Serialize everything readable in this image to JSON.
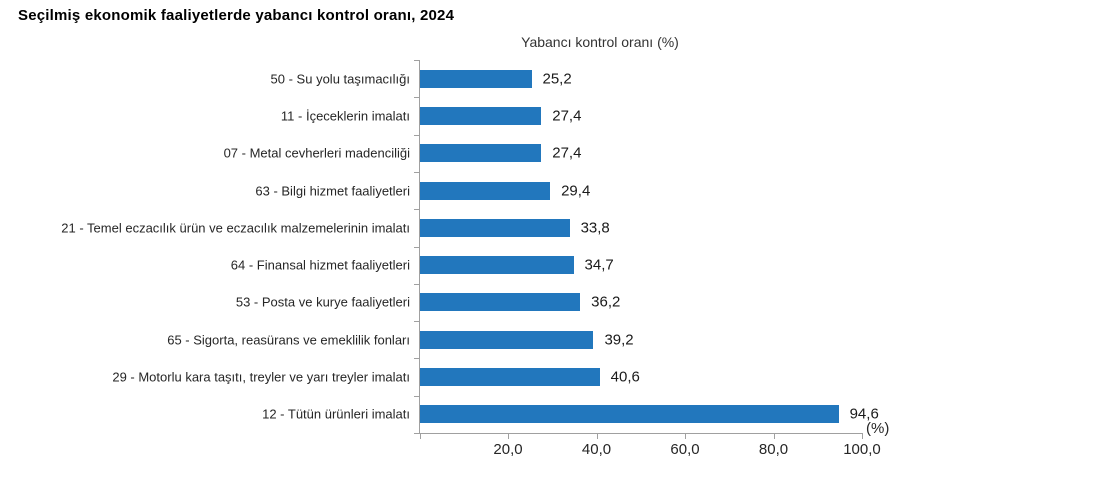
{
  "title": "Seçilmiş ekonomik faaliyetlerde yabancı kontrol oranı, 2024",
  "chart_data": {
    "type": "bar",
    "orientation": "horizontal",
    "title": "Yabancı kontrol oranı (%)",
    "categories": [
      "50 - Su yolu taşımacılığı",
      "11 - İçeceklerin imalatı",
      "07 - Metal cevherleri madenciliği",
      "63 - Bilgi hizmet faaliyetleri",
      "21 - Temel eczacılık ürün ve eczacılık malzemelerinin imalatı",
      "64 - Finansal hizmet faaliyetleri",
      "53 - Posta ve kurye faaliyetleri",
      "65 - Sigorta, reasürans ve emeklilik fonları",
      "29 - Motorlu kara taşıtı, treyler ve yarı treyler imalatı",
      "12 - Tütün ürünleri imalatı"
    ],
    "values": [
      25.2,
      27.4,
      27.4,
      29.4,
      33.8,
      34.7,
      36.2,
      39.2,
      40.6,
      94.6
    ],
    "value_labels": [
      "25,2",
      "27,4",
      "27,4",
      "29,4",
      "33,8",
      "34,7",
      "36,2",
      "39,2",
      "40,6",
      "94,6"
    ],
    "xlim": [
      0,
      100
    ],
    "x_ticks": [
      {
        "value": 0,
        "label": ""
      },
      {
        "value": 20,
        "label": "20,0"
      },
      {
        "value": 40,
        "label": "40,0"
      },
      {
        "value": 60,
        "label": "60,0"
      },
      {
        "value": 80,
        "label": "80,0"
      },
      {
        "value": 100,
        "label": "100,0"
      }
    ],
    "axis_unit_label": "(%)",
    "grid": false,
    "legend": false,
    "bar_color": "#2277bd",
    "axis_color": "#a0a0a0"
  }
}
